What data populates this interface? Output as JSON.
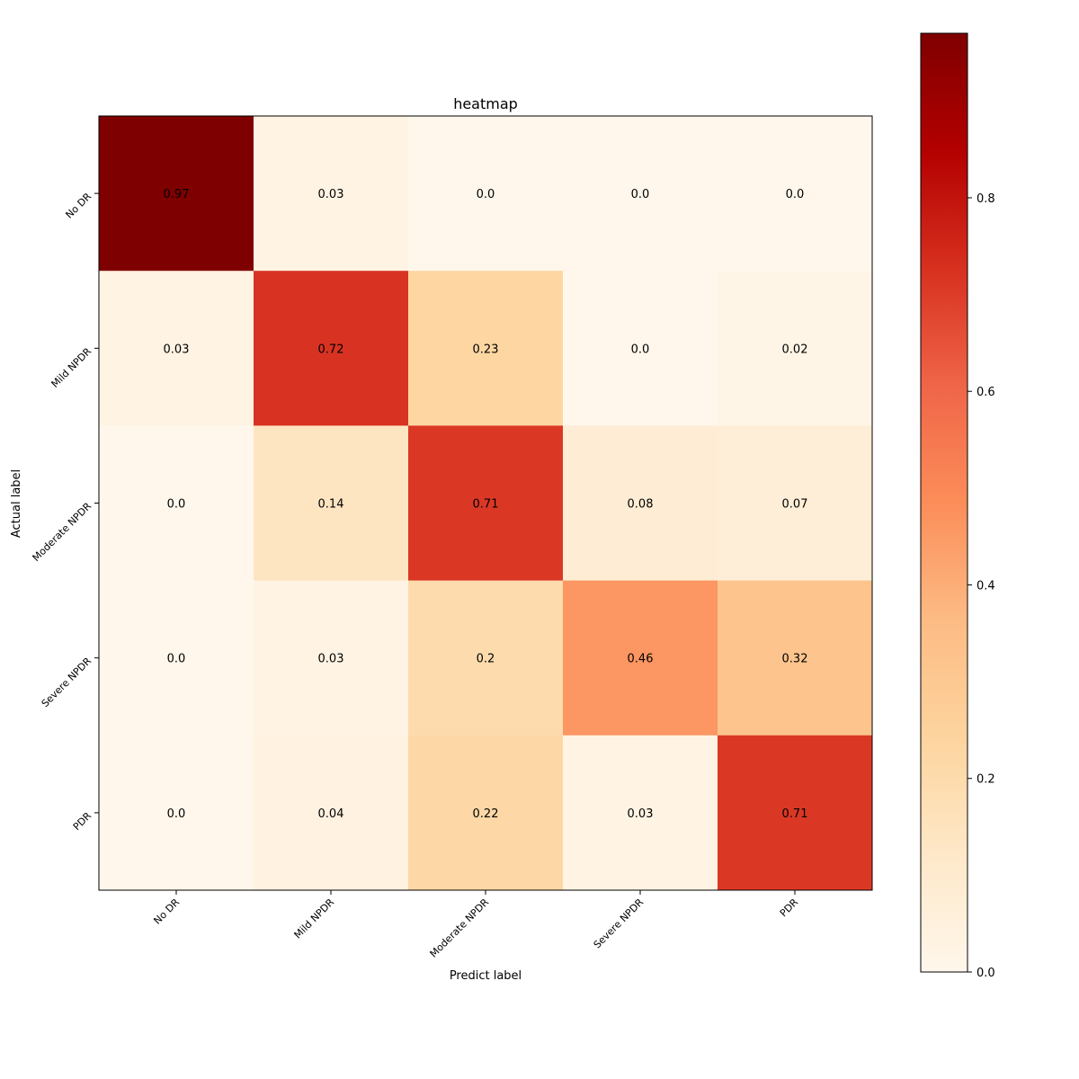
{
  "chart_data": {
    "type": "heatmap",
    "title": "heatmap",
    "xlabel": "Predict label",
    "ylabel": "Actual label",
    "x_categories": [
      "No DR",
      "Mild NPDR",
      "Moderate NPDR",
      "Severe NPDR",
      "PDR"
    ],
    "y_categories": [
      "No DR",
      "Mild NPDR",
      "Moderate NPDR",
      "Severe NPDR",
      "PDR"
    ],
    "values": [
      [
        0.97,
        0.03,
        0.0,
        0.0,
        0.0
      ],
      [
        0.03,
        0.72,
        0.23,
        0.0,
        0.02
      ],
      [
        0.0,
        0.14,
        0.71,
        0.08,
        0.07
      ],
      [
        0.0,
        0.03,
        0.2,
        0.46,
        0.32
      ],
      [
        0.0,
        0.04,
        0.22,
        0.03,
        0.71
      ]
    ],
    "cell_labels": [
      [
        "0.97",
        "0.03",
        "0.0",
        "0.0",
        "0.0"
      ],
      [
        "0.03",
        "0.72",
        "0.23",
        "0.0",
        "0.02"
      ],
      [
        "0.0",
        "0.14",
        "0.71",
        "0.08",
        "0.07"
      ],
      [
        "0.0",
        "0.03",
        "0.2",
        "0.46",
        "0.32"
      ],
      [
        "0.0",
        "0.04",
        "0.22",
        "0.03",
        "0.71"
      ]
    ],
    "colormap": "OrRd",
    "colorbar": {
      "range": [
        0.0,
        0.97
      ],
      "ticks": [
        0.0,
        0.2,
        0.4,
        0.6,
        0.8
      ],
      "tick_labels": [
        "0.0",
        "0.2",
        "0.4",
        "0.6",
        "0.8"
      ],
      "colors": [
        "#fff7ec",
        "#fee8c8",
        "#fdd49e",
        "#fdbb84",
        "#fc8d59",
        "#ef6548",
        "#d7301f",
        "#b30000",
        "#7f0000"
      ]
    },
    "grid": false,
    "legend": "colorbar-right"
  }
}
